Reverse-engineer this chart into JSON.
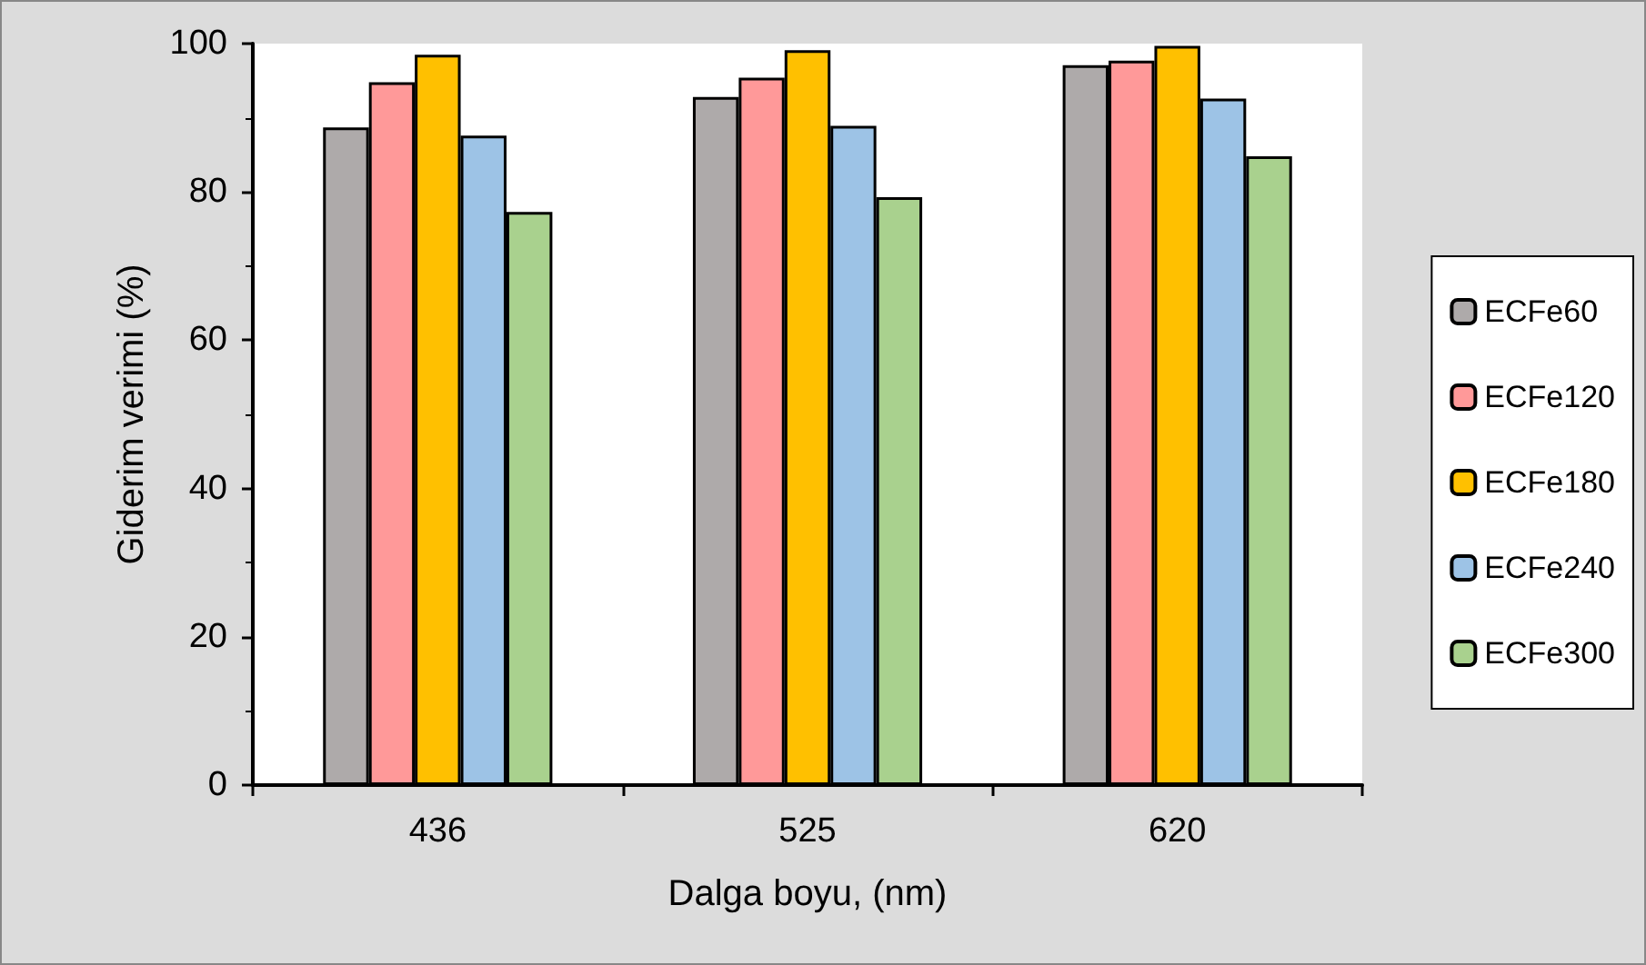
{
  "chart_data": {
    "type": "bar",
    "xlabel": "Dalga boyu, (nm)",
    "ylabel": "Giderim verimi (%)",
    "categories": [
      "436",
      "525",
      "620"
    ],
    "series": [
      {
        "name": "ECFe60",
        "color": "#aeaaaa",
        "values": [
          88.7,
          92.8,
          97.1
        ]
      },
      {
        "name": "ECFe120",
        "color": "#ff9999",
        "values": [
          94.8,
          95.4,
          97.7
        ]
      },
      {
        "name": "ECFe180",
        "color": "#ffc000",
        "values": [
          98.5,
          99.1,
          99.7
        ]
      },
      {
        "name": "ECFe240",
        "color": "#9dc3e6",
        "values": [
          87.6,
          88.9,
          92.6
        ]
      },
      {
        "name": "ECFe300",
        "color": "#a9d18e",
        "values": [
          77.3,
          79.3,
          84.8
        ]
      }
    ],
    "ylim": [
      0,
      100
    ],
    "yticks": [
      0,
      20,
      40,
      60,
      80,
      100
    ],
    "grid": false,
    "legend": "right"
  }
}
